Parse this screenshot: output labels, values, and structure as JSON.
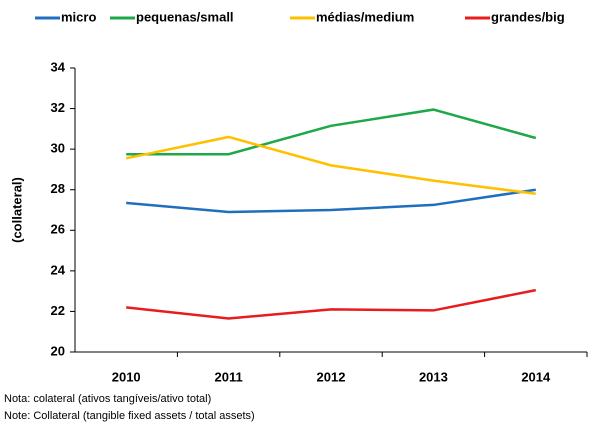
{
  "chart_data": {
    "type": "line",
    "y_label": "(collateral)",
    "categories": [
      "2010",
      "2011",
      "2012",
      "2013",
      "2014"
    ],
    "series": [
      {
        "name": "micro",
        "color": "#1f6fbf",
        "values": [
          27.35,
          26.9,
          27.0,
          27.25,
          28.0
        ]
      },
      {
        "name": "pequenas/small",
        "color": "#1ea84a",
        "values": [
          29.75,
          29.75,
          31.15,
          31.95,
          30.55
        ]
      },
      {
        "name": "médias/medium",
        "color": "#ffc000",
        "values": [
          29.55,
          30.6,
          29.2,
          28.45,
          27.8
        ]
      },
      {
        "name": "grandes/big",
        "color": "#e81c1c",
        "values": [
          22.2,
          21.65,
          22.1,
          22.05,
          23.05
        ]
      }
    ],
    "ylim": [
      20,
      34
    ],
    "yticks": [
      20,
      22,
      24,
      26,
      28,
      30,
      32,
      34
    ],
    "grid": false,
    "legend": "top",
    "notes": [
      "Nota: colateral (ativos tangíveis/ativo total)",
      "Note: Collateral (tangible fixed assets / total assets)"
    ]
  }
}
